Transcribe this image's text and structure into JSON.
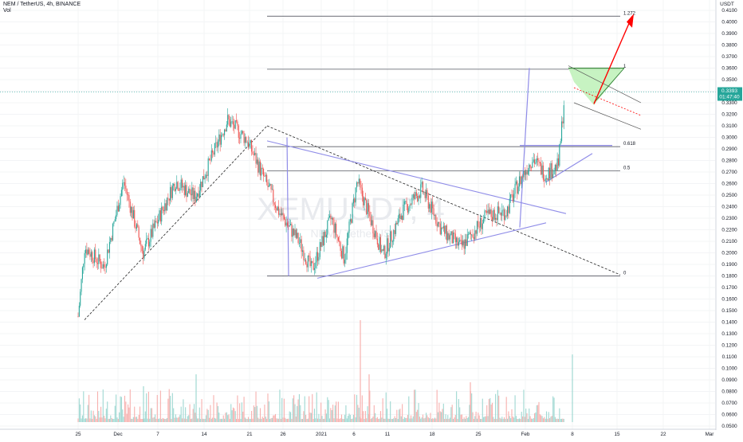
{
  "header": {
    "symbol_line": "NEM / TetherUS, 4h, BINANCE",
    "vol_label": "Vol",
    "watermark": "XEMUSDT, 4",
    "watermark_sub": "NEM / TetherUS"
  },
  "price_axis": {
    "currency": "USDT",
    "ticks": [
      "0.4100",
      "0.4000",
      "0.3900",
      "0.3800",
      "0.3700",
      "0.3600",
      "0.3500",
      "0.3400",
      "0.3300",
      "0.3200",
      "0.3100",
      "0.3000",
      "0.2900",
      "0.2800",
      "0.2700",
      "0.2600",
      "0.2500",
      "0.2400",
      "0.2300",
      "0.2200",
      "0.2100",
      "0.2000",
      "0.1900",
      "0.1800",
      "0.1700",
      "0.1600",
      "0.1500",
      "0.1400",
      "0.1300",
      "0.1200",
      "0.1100",
      "0.1000",
      "0.0900",
      "0.0800",
      "0.0700",
      "0.0600",
      "0.0500"
    ],
    "last_price": "0.3393",
    "countdown": "01:47:40"
  },
  "time_axis": {
    "ticks": [
      "25",
      "Dec",
      "7",
      "14",
      "21",
      "26",
      "2021",
      "6",
      "11",
      "18",
      "25",
      "Feb",
      "8",
      "15",
      "22",
      "Mar"
    ]
  },
  "fib_levels": [
    {
      "label": "1.272",
      "price": 0.405
    },
    {
      "label": "1",
      "price": 0.359
    },
    {
      "label": "0.618",
      "price": 0.292
    },
    {
      "label": "0.5",
      "price": 0.271
    },
    {
      "label": "0",
      "price": 0.18
    }
  ],
  "colors": {
    "up": "#26a69a",
    "down": "#ef5350",
    "vol_up": "#9fd8d2",
    "vol_down": "#f7b0ae",
    "pattern_line": "#8f8ce8",
    "fib_line": "#3a3d48",
    "target_arrow": "#ff0000",
    "channel_fill": "#b9f0b3",
    "price_tag": "#26a69a"
  },
  "chart_data": {
    "type": "candlestick",
    "title": "NEM / TetherUS, 4h, BINANCE",
    "ylim": [
      0.05,
      0.415
    ],
    "x_range_dates": [
      "2020-11-25",
      "2021-03-01"
    ],
    "anchors": [
      {
        "date": "2020-11-25",
        "price": 0.145
      },
      {
        "date": "2020-11-26",
        "price": 0.205
      },
      {
        "date": "2020-11-29",
        "price": 0.188
      },
      {
        "date": "2020-12-02",
        "price": 0.262
      },
      {
        "date": "2020-12-05",
        "price": 0.2
      },
      {
        "date": "2020-12-10",
        "price": 0.262
      },
      {
        "date": "2020-12-13",
        "price": 0.248
      },
      {
        "date": "2020-12-18",
        "price": 0.315
      },
      {
        "date": "2020-12-21",
        "price": 0.298
      },
      {
        "date": "2020-12-26",
        "price": 0.235
      },
      {
        "date": "2020-12-29",
        "price": 0.21
      },
      {
        "date": "2020-12-31",
        "price": 0.185
      },
      {
        "date": "2021-01-03",
        "price": 0.23
      },
      {
        "date": "2021-01-05",
        "price": 0.195
      },
      {
        "date": "2021-01-07",
        "price": 0.262
      },
      {
        "date": "2021-01-11",
        "price": 0.198
      },
      {
        "date": "2021-01-14",
        "price": 0.236
      },
      {
        "date": "2021-01-17",
        "price": 0.255
      },
      {
        "date": "2021-01-20",
        "price": 0.22
      },
      {
        "date": "2021-01-23",
        "price": 0.205
      },
      {
        "date": "2021-01-27",
        "price": 0.232
      },
      {
        "date": "2021-01-30",
        "price": 0.236
      },
      {
        "date": "2021-02-01",
        "price": 0.262
      },
      {
        "date": "2021-02-03",
        "price": 0.282
      },
      {
        "date": "2021-02-05",
        "price": 0.268
      },
      {
        "date": "2021-02-07",
        "price": 0.276
      },
      {
        "date": "2021-02-08",
        "price": 0.339
      }
    ],
    "volume_axis_note": "volume histogram at bottom, scale not printed"
  }
}
